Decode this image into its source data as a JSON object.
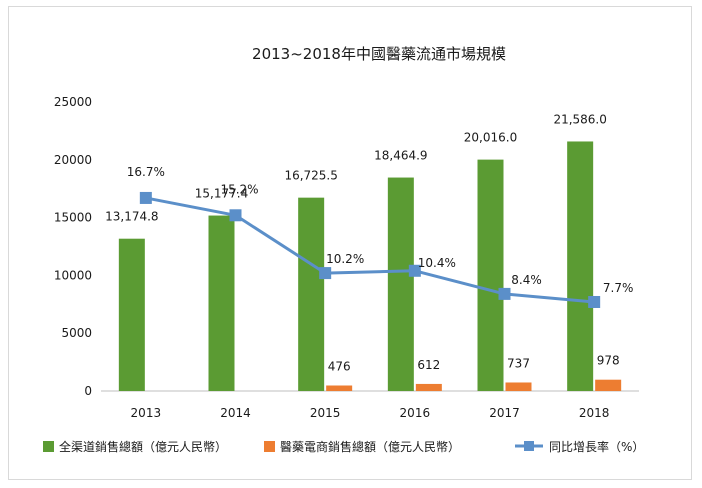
{
  "chart_data": {
    "type": "bar",
    "title": "2013~2018年中國醫藥流通市場規模",
    "categories": [
      "2013",
      "2014",
      "2015",
      "2016",
      "2017",
      "2018"
    ],
    "ylim": [
      0,
      25000
    ],
    "yticks": [
      0,
      5000,
      10000,
      15000,
      20000,
      25000
    ],
    "series": [
      {
        "name": "全渠道銷售總額（億元人民幣）",
        "kind": "bar",
        "color": "#5b9b33",
        "values": [
          13174.8,
          15177.4,
          16725.5,
          18464.9,
          20016.0,
          21586.0
        ],
        "labels": [
          "13,174.8",
          "15,177.4",
          "16,725.5",
          "18,464.9",
          "20,016.0",
          "21,586.0"
        ]
      },
      {
        "name": "醫藥電商銷售總額（億元人民幣）",
        "kind": "bar",
        "color": "#ed7d31",
        "values": [
          null,
          null,
          476,
          612,
          737,
          978
        ],
        "labels": [
          "",
          "",
          "476",
          "612",
          "737",
          "978"
        ]
      },
      {
        "name": "同比增長率（%）",
        "kind": "line",
        "color": "#5b8fc9",
        "values": [
          16.7,
          15.2,
          10.2,
          10.4,
          8.4,
          7.7
        ],
        "labels": [
          "16.7%",
          "15.2%",
          "10.2%",
          "10.4%",
          "8.4%",
          "7.7%"
        ]
      }
    ],
    "grid": false,
    "legend": "bottom"
  }
}
